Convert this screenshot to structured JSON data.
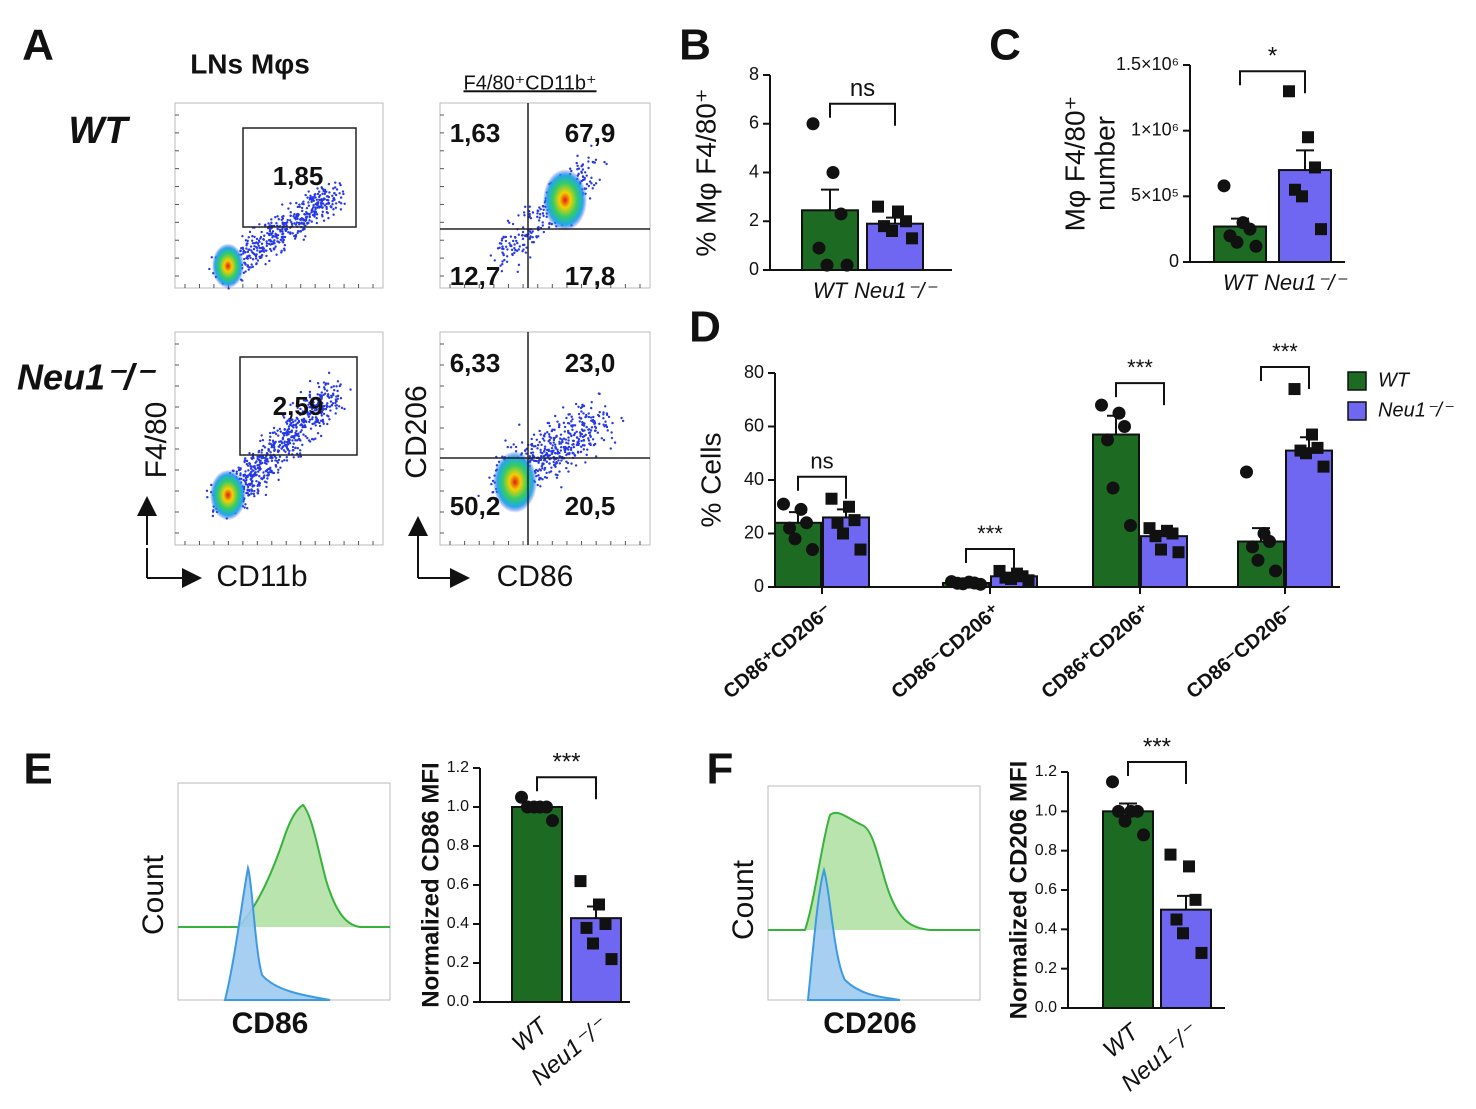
{
  "panel_labels": [
    "A",
    "B",
    "C",
    "D",
    "E",
    "F"
  ],
  "flow": {
    "title": "LNs Mφs",
    "gate_title": "F4/80⁺CD11b⁺",
    "rows": [
      {
        "label": "WT",
        "gate": "1,85",
        "quadrants": [
          "1,63",
          "67,9",
          "12,7",
          "17,8"
        ]
      },
      {
        "label": "Neu1⁻/⁻",
        "gate": "2,59",
        "quadrants": [
          "6,33",
          "23,0",
          "50,2",
          "20,5"
        ]
      }
    ],
    "x_label": "CD11b",
    "y_label": "F4/80",
    "x_label2": "CD86",
    "y_label2": "CD206"
  },
  "histograms": [
    {
      "x_label": "CD86",
      "y_label": "Count"
    },
    {
      "x_label": "CD206",
      "y_label": "Count"
    }
  ],
  "chart_data": [
    {
      "type": "bar",
      "ylabel": [
        "% Mφ F4/80⁺"
      ],
      "categories": [
        "WT",
        "Neu1⁻/⁻"
      ],
      "values": [
        2.45,
        1.9
      ],
      "errors": [
        0.85,
        0.25
      ],
      "points": [
        [
          6.0,
          4.0,
          2.3,
          0.9,
          0.2,
          0.2
        ],
        [
          2.6,
          2.4,
          2.0,
          1.8,
          1.6,
          1.3
        ]
      ],
      "colors": [
        "#1d6b22",
        "#6f66f2"
      ],
      "markers": [
        "circle",
        "square"
      ],
      "ylim": [
        0,
        8
      ],
      "yticks": [
        0,
        2,
        4,
        6,
        8
      ],
      "annotation": "ns"
    },
    {
      "type": "bar",
      "ylabel": [
        "Mφ F4/80⁺",
        "number"
      ],
      "categories": [
        "WT",
        "Neu1⁻/⁻"
      ],
      "values": [
        270000,
        700000
      ],
      "errors": [
        60000,
        150000
      ],
      "points": [
        [
          580000,
          300000,
          250000,
          200000,
          150000,
          120000
        ],
        [
          1300000,
          950000,
          720000,
          550000,
          500000,
          250000
        ]
      ],
      "colors": [
        "#1d6b22",
        "#6f66f2"
      ],
      "markers": [
        "circle",
        "square"
      ],
      "ylim": [
        0,
        1500000
      ],
      "yticks": [
        0,
        {
          "value": 500000,
          "label": "5×10⁵"
        },
        {
          "value": 1000000,
          "label": "1×10⁶"
        },
        {
          "value": 1500000,
          "label": "1.5×10⁶"
        }
      ],
      "annotation": "*"
    },
    {
      "type": "grouped_bar",
      "ylabel": [
        "% Cells"
      ],
      "categories": [
        "CD86⁺CD206⁻",
        "CD86⁻CD206⁺",
        "CD86⁺CD206⁺",
        "CD86⁻CD206⁻"
      ],
      "series": [
        {
          "name": "WT",
          "color": "#1d6b22",
          "marker": "circle",
          "values": [
            24,
            1.5,
            57,
            17
          ],
          "errors": [
            4,
            0.2,
            7,
            5
          ],
          "points": [
            [
              31,
              29,
              24,
              22,
              18,
              14
            ],
            [
              2,
              1.8,
              1.5,
              1.4,
              1.2,
              1.0
            ],
            [
              68,
              65,
              60,
              55,
              37,
              23
            ],
            [
              43,
              20,
              17,
              15,
              10,
              6
            ]
          ]
        },
        {
          "name": "Neu1⁻/⁻",
          "color": "#6f66f2",
          "marker": "square",
          "values": [
            26,
            4,
            19,
            51
          ],
          "errors": [
            3,
            0.6,
            2,
            5
          ],
          "points": [
            [
              33,
              30,
              25,
              24,
              20,
              14
            ],
            [
              6,
              5,
              4,
              3.5,
              3,
              2.5
            ],
            [
              22,
              21,
              20,
              19,
              14,
              13
            ],
            [
              74,
              57,
              52,
              51,
              50,
              45
            ]
          ]
        }
      ],
      "ylim": [
        0,
        80
      ],
      "yticks": [
        0,
        20,
        40,
        60,
        80
      ],
      "annotations": [
        "ns",
        "***",
        "***",
        "***"
      ],
      "legend": "upper right"
    },
    {
      "type": "bar",
      "ylabel": [
        "Normalized CD86 MFI"
      ],
      "categories": [
        "WT",
        "Neu1⁻/⁻"
      ],
      "values": [
        1.0,
        0.43
      ],
      "errors": [
        0.02,
        0.06
      ],
      "points": [
        [
          1.05,
          1.0,
          1.0,
          1.0,
          1.0,
          0.93
        ],
        [
          0.62,
          0.5,
          0.4,
          0.38,
          0.3,
          0.22
        ]
      ],
      "colors": [
        "#1d6b22",
        "#6f66f2"
      ],
      "markers": [
        "circle",
        "square"
      ],
      "ylim": [
        0,
        1.2
      ],
      "yticks": [
        {
          "value": 0,
          "label": "0.0"
        },
        0.2,
        0.4,
        0.6,
        0.8,
        {
          "value": 1,
          "label": "1.0"
        },
        1.2
      ],
      "annotation": "***"
    },
    {
      "type": "bar",
      "ylabel": [
        "Normalized CD206 MFI"
      ],
      "categories": [
        "WT",
        "Neu1⁻/⁻"
      ],
      "values": [
        1.0,
        0.5
      ],
      "errors": [
        0.04,
        0.07
      ],
      "points": [
        [
          1.15,
          1.0,
          1.0,
          1.0,
          0.95,
          0.88
        ],
        [
          0.78,
          0.72,
          0.55,
          0.45,
          0.38,
          0.28
        ]
      ],
      "colors": [
        "#1d6b22",
        "#6f66f2"
      ],
      "markers": [
        "circle",
        "square"
      ],
      "ylim": [
        0,
        1.2
      ],
      "yticks": [
        {
          "value": 0,
          "label": "0.0"
        },
        0.2,
        0.4,
        0.6,
        0.8,
        {
          "value": 1,
          "label": "1.0"
        },
        1.2
      ],
      "annotation": "***"
    }
  ]
}
